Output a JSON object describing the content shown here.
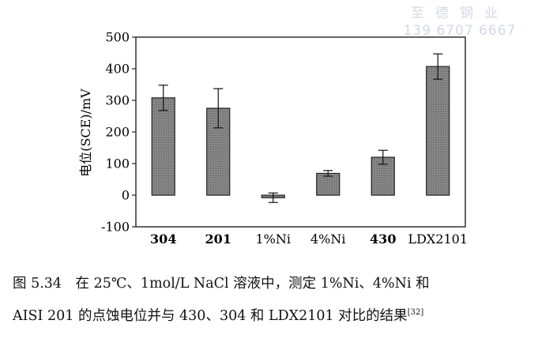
{
  "watermark": {
    "line1": "至德钢业",
    "line2": "139 6707 6667"
  },
  "chart_data": {
    "type": "bar",
    "categories": [
      "304",
      "201",
      "1%Ni",
      "4%Ni",
      "430",
      "LDX2101"
    ],
    "values": [
      308,
      275,
      -8,
      69,
      120,
      407
    ],
    "errors": [
      40,
      62,
      15,
      9,
      22,
      40
    ],
    "ylabel": "电位(SCE)/mV",
    "xlabel": "",
    "ylim": [
      -100,
      500
    ],
    "yticks": [
      -100,
      0,
      100,
      200,
      300,
      400,
      500
    ],
    "grid": false,
    "legend": "none",
    "bar_color": "#7a7a7a"
  },
  "caption": {
    "line1": "图 5.34　在 25℃、1mol/L NaCl 溶液中，测定 1%Ni、4%Ni 和",
    "line2": "AISI 201 的点蚀电位并与 430、304 和 LDX2101 对比的结果",
    "ref": "[32]"
  }
}
